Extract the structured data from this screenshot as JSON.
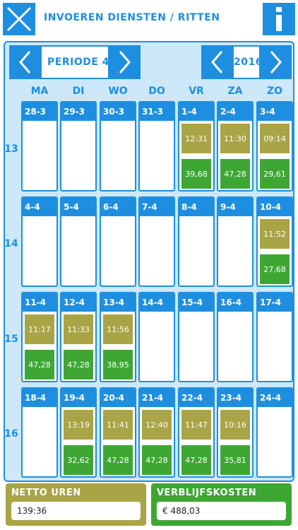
{
  "header": {
    "title": "INVOEREN DIENSTEN / RITTEN"
  },
  "colors": {
    "blue": "#1e8fe0",
    "olive": "#a9a445",
    "green": "#3ea734",
    "panel_bg": "#cde8f8"
  },
  "period_nav": {
    "label": "PERIODE 4"
  },
  "year_nav": {
    "label": "2016"
  },
  "days": [
    "MA",
    "DI",
    "WO",
    "DO",
    "VR",
    "ZA",
    "ZO"
  ],
  "weeks": [
    {
      "number": "13",
      "dates": [
        "28-3",
        "29-3",
        "30-3",
        "31-3",
        "1-4",
        "2-4",
        "3-4"
      ],
      "times": [
        "",
        "",
        "",
        "",
        "12:31",
        "11:30",
        "09:14"
      ],
      "costs": [
        "",
        "",
        "",
        "",
        "39,68",
        "47,28",
        "29,61"
      ]
    },
    {
      "number": "14",
      "dates": [
        "4-4",
        "5-4",
        "6-4",
        "7-4",
        "8-4",
        "9-4",
        "10-4"
      ],
      "times": [
        "",
        "",
        "",
        "",
        "",
        "",
        "11:52"
      ],
      "costs": [
        "",
        "",
        "",
        "",
        "",
        "",
        "27,68"
      ]
    },
    {
      "number": "15",
      "dates": [
        "11-4",
        "12-4",
        "13-4",
        "14-4",
        "15-4",
        "16-4",
        "17-4"
      ],
      "times": [
        "11:17",
        "11:33",
        "11:56",
        "",
        "",
        "",
        ""
      ],
      "costs": [
        "47,28",
        "47,28",
        "38,95",
        "",
        "",
        "",
        ""
      ]
    },
    {
      "number": "16",
      "dates": [
        "18-4",
        "19-4",
        "20-4",
        "21-4",
        "22-4",
        "23-4",
        "24-4"
      ],
      "times": [
        "",
        "13:19",
        "11:41",
        "12:40",
        "11:47",
        "10:16",
        ""
      ],
      "costs": [
        "",
        "32,62",
        "47,28",
        "47,28",
        "47,28",
        "35,81",
        ""
      ]
    }
  ],
  "summary": {
    "netto_label": "NETTO UREN",
    "netto_value": "139:36",
    "kosten_label": "VERBLIJFSKOSTEN",
    "kosten_value": "€ 488,03"
  }
}
